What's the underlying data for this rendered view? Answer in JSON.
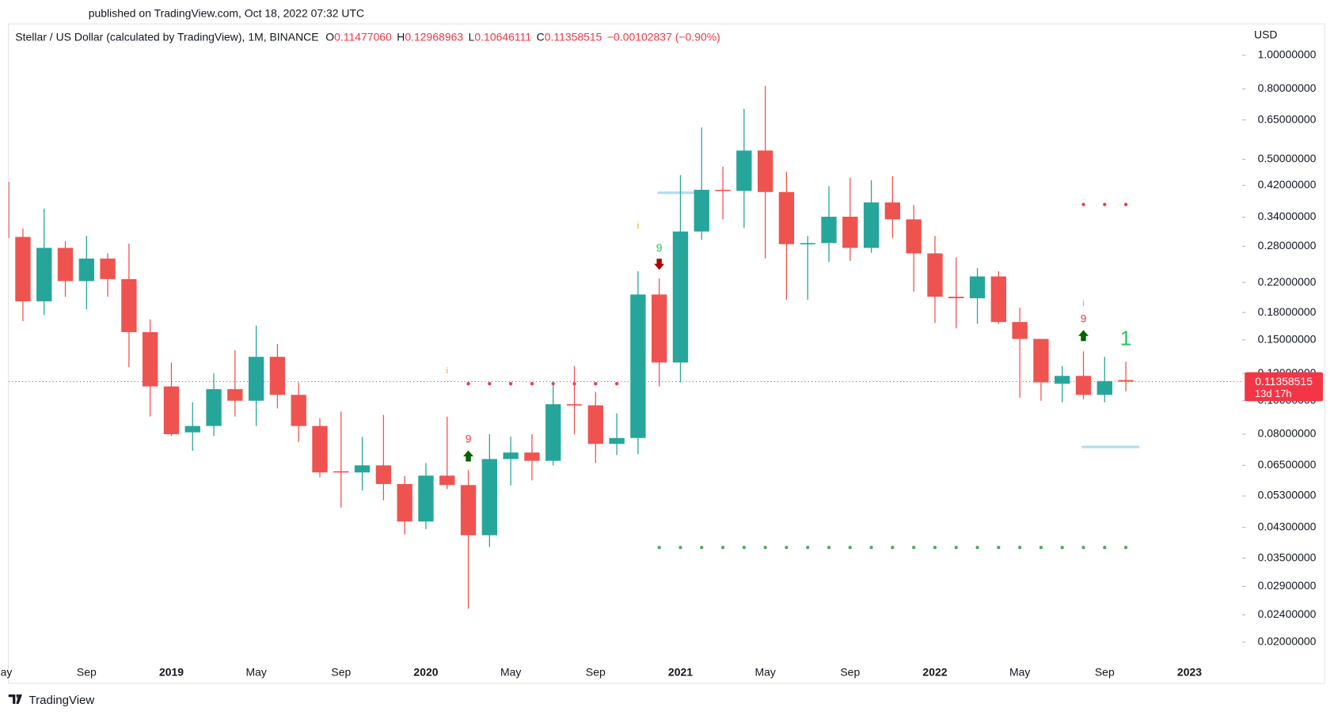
{
  "published": "published on TradingView.com, Oct 18, 2022 07:32 UTC",
  "brand": "TradingView",
  "chart_data": {
    "type": "candlestick",
    "title": "Stellar / US Dollar (calculated by TradingView), 1M, BINANCE",
    "ohlc_header": [
      {
        "label": "O",
        "value": "0.11477060"
      },
      {
        "label": "H",
        "value": "0.12968963"
      },
      {
        "label": "L",
        "value": "0.10646111"
      },
      {
        "label": "C",
        "value": "0.11358515"
      }
    ],
    "change": "−0.00102837 (−0.90%)",
    "y_axis_label": "USD",
    "log_scale": true,
    "up_color": "#26a69a",
    "down_color": "#ef5350",
    "x": [
      "2018-05",
      "2018-06",
      "2018-07",
      "2018-08",
      "2018-09",
      "2018-10",
      "2018-11",
      "2018-12",
      "2019-01",
      "2019-02",
      "2019-03",
      "2019-04",
      "2019-05",
      "2019-06",
      "2019-07",
      "2019-08",
      "2019-09",
      "2019-10",
      "2019-11",
      "2019-12",
      "2020-01",
      "2020-02",
      "2020-03",
      "2020-04",
      "2020-05",
      "2020-06",
      "2020-07",
      "2020-08",
      "2020-09",
      "2020-10",
      "2020-11",
      "2020-12",
      "2021-01",
      "2021-02",
      "2021-03",
      "2021-04",
      "2021-05",
      "2021-06",
      "2021-07",
      "2021-08",
      "2021-09",
      "2021-10",
      "2021-11",
      "2021-12",
      "2022-01",
      "2022-02",
      "2022-03",
      "2022-04",
      "2022-05",
      "2022-06",
      "2022-07",
      "2022-08",
      "2022-09",
      "2022-10"
    ],
    "open": [
      0.43,
      0.298,
      0.194,
      0.277,
      0.222,
      0.258,
      0.225,
      0.158,
      0.11,
      0.081,
      0.0845,
      0.108,
      0.1,
      0.134,
      0.104,
      0.0845,
      0.0625,
      0.062,
      0.065,
      0.0574,
      0.0447,
      0.0607,
      0.057,
      0.0408,
      0.0678,
      0.0708,
      0.067,
      0.0977,
      0.097,
      0.075,
      0.078,
      0.203,
      0.129,
      0.309,
      0.408,
      0.405,
      0.53,
      0.402,
      0.284,
      0.286,
      0.341,
      0.277,
      0.375,
      0.335,
      0.267,
      0.2,
      0.198,
      0.229,
      0.169,
      0.151,
      0.112,
      0.118,
      0.104,
      0.1147706
    ],
    "high": [
      0.45,
      0.315,
      0.36,
      0.29,
      0.3,
      0.267,
      0.285,
      0.172,
      0.129,
      0.099,
      0.12,
      0.14,
      0.165,
      0.146,
      0.113,
      0.089,
      0.093,
      0.0785,
      0.091,
      0.0605,
      0.066,
      0.09,
      0.063,
      0.08,
      0.0787,
      0.08,
      0.114,
      0.126,
      0.106,
      0.092,
      0.237,
      0.226,
      0.45,
      0.618,
      0.476,
      0.7,
      0.815,
      0.46,
      0.3,
      0.418,
      0.442,
      0.435,
      0.447,
      0.369,
      0.3,
      0.26,
      0.242,
      0.237,
      0.186,
      0.151,
      0.126,
      0.139,
      0.134,
      0.12968963
    ],
    "low": [
      0.29,
      0.17,
      0.177,
      0.2,
      0.184,
      0.2,
      0.125,
      0.09,
      0.079,
      0.0716,
      0.079,
      0.09,
      0.0845,
      0.095,
      0.076,
      0.06,
      0.049,
      0.055,
      0.0515,
      0.041,
      0.0425,
      0.0555,
      0.025,
      0.0377,
      0.0569,
      0.0588,
      0.065,
      0.08,
      0.066,
      0.0696,
      0.07,
      0.11,
      0.113,
      0.292,
      0.335,
      0.316,
      0.258,
      0.196,
      0.196,
      0.252,
      0.254,
      0.268,
      0.296,
      0.207,
      0.168,
      0.162,
      0.167,
      0.167,
      0.102,
      0.1,
      0.099,
      0.101,
      0.099,
      0.10646111
    ],
    "close": [
      0.296,
      0.194,
      0.277,
      0.222,
      0.258,
      0.225,
      0.158,
      0.11,
      0.08,
      0.0845,
      0.108,
      0.1,
      0.134,
      0.104,
      0.0845,
      0.062,
      0.062,
      0.065,
      0.0574,
      0.0447,
      0.0607,
      0.057,
      0.0408,
      0.0678,
      0.0708,
      0.067,
      0.0977,
      0.0972,
      0.075,
      0.078,
      0.203,
      0.129,
      0.309,
      0.408,
      0.405,
      0.53,
      0.402,
      0.284,
      0.286,
      0.341,
      0.277,
      0.375,
      0.335,
      0.267,
      0.2,
      0.198,
      0.229,
      0.169,
      0.151,
      0.113,
      0.118,
      0.104,
      0.114,
      0.11358515
    ],
    "xlim": [
      "2018-05",
      "2023-03"
    ],
    "xticks": [
      {
        "value": "2018-05",
        "label": "May"
      },
      {
        "value": "2018-09",
        "label": "Sep"
      },
      {
        "value": "2019-01",
        "label": "2019"
      },
      {
        "value": "2019-05",
        "label": "May"
      },
      {
        "value": "2019-09",
        "label": "Sep"
      },
      {
        "value": "2020-01",
        "label": "2020"
      },
      {
        "value": "2020-05",
        "label": "May"
      },
      {
        "value": "2020-09",
        "label": "Sep"
      },
      {
        "value": "2021-01",
        "label": "2021"
      },
      {
        "value": "2021-05",
        "label": "May"
      },
      {
        "value": "2021-09",
        "label": "Sep"
      },
      {
        "value": "2022-01",
        "label": "2022"
      },
      {
        "value": "2022-05",
        "label": "May"
      },
      {
        "value": "2022-09",
        "label": "Sep"
      },
      {
        "value": "2023-01",
        "label": "2023"
      }
    ],
    "ylim": [
      0.0179,
      1.233
    ],
    "yticks": [
      {
        "value": 1.0,
        "label": "1.00000000"
      },
      {
        "value": 0.8,
        "label": "0.80000000"
      },
      {
        "value": 0.65,
        "label": "0.65000000"
      },
      {
        "value": 0.5,
        "label": "0.50000000"
      },
      {
        "value": 0.42,
        "label": "0.42000000"
      },
      {
        "value": 0.34,
        "label": "0.34000000"
      },
      {
        "value": 0.28,
        "label": "0.28000000"
      },
      {
        "value": 0.22,
        "label": "0.22000000"
      },
      {
        "value": 0.18,
        "label": "0.18000000"
      },
      {
        "value": 0.15,
        "label": "0.15000000"
      },
      {
        "value": 0.12,
        "label": "0.12000000"
      },
      {
        "value": 0.1,
        "label": "0.10000000"
      },
      {
        "value": 0.08,
        "label": "0.08000000"
      },
      {
        "value": 0.065,
        "label": "0.06500000"
      },
      {
        "value": 0.053,
        "label": "0.05300000"
      },
      {
        "value": 0.043,
        "label": "0.04300000"
      },
      {
        "value": 0.035,
        "label": "0.03500000"
      },
      {
        "value": 0.029,
        "label": "0.02900000"
      },
      {
        "value": 0.024,
        "label": "0.02400000"
      },
      {
        "value": 0.02,
        "label": "0.02000000"
      }
    ],
    "last_price": 0.11358515,
    "last_price_label": "0.11358515",
    "countdown": "13d 17h",
    "last_price_color": "#f23645",
    "levels": [
      {
        "value": 0.112,
        "from": "2020-03",
        "to": "2020-10",
        "style": "dots",
        "color": "#f23645"
      },
      {
        "value": 0.37,
        "from": "2022-08",
        "to": "2022-10",
        "style": "dots",
        "color": "#f23645"
      },
      {
        "value": 0.0376,
        "from": "2020-12",
        "to": "2022-10",
        "style": "dots",
        "color": "#4caf50"
      },
      {
        "value": 0.4,
        "from": "2020-12",
        "to": "2021-01",
        "style": "line",
        "color": "#b2dcef"
      },
      {
        "value": 0.0735,
        "from": "2022-08",
        "to": "2022-10",
        "style": "line",
        "color": "#b2dcef"
      }
    ],
    "annotations": [
      {
        "x": "2020-02",
        "y": 0.122,
        "text": "i",
        "color": "#ff9800"
      },
      {
        "x": "2020-03",
        "y": 0.0771,
        "text": "9",
        "color": "#f23645"
      },
      {
        "x": "2020-11",
        "y": 0.32,
        "text": "i",
        "color": "#ff9800"
      },
      {
        "x": "2020-12",
        "y": 0.276,
        "text": "9",
        "color": "#22c55e"
      },
      {
        "x": "2022-08",
        "y": 0.191,
        "text": "i",
        "color": "#ff9800"
      },
      {
        "x": "2022-08",
        "y": 0.172,
        "text": "9",
        "color": "#f23645"
      },
      {
        "x": "2022-10",
        "y": 0.15,
        "text": "1",
        "color": "#22c55e"
      }
    ],
    "arrows": [
      {
        "x": "2020-03",
        "y": 0.069,
        "direction": "up",
        "color": "#006400"
      },
      {
        "x": "2020-12",
        "y": 0.249,
        "direction": "down",
        "color": "#b00000"
      },
      {
        "x": "2022-08",
        "y": 0.154,
        "direction": "up",
        "color": "#006400"
      }
    ]
  }
}
